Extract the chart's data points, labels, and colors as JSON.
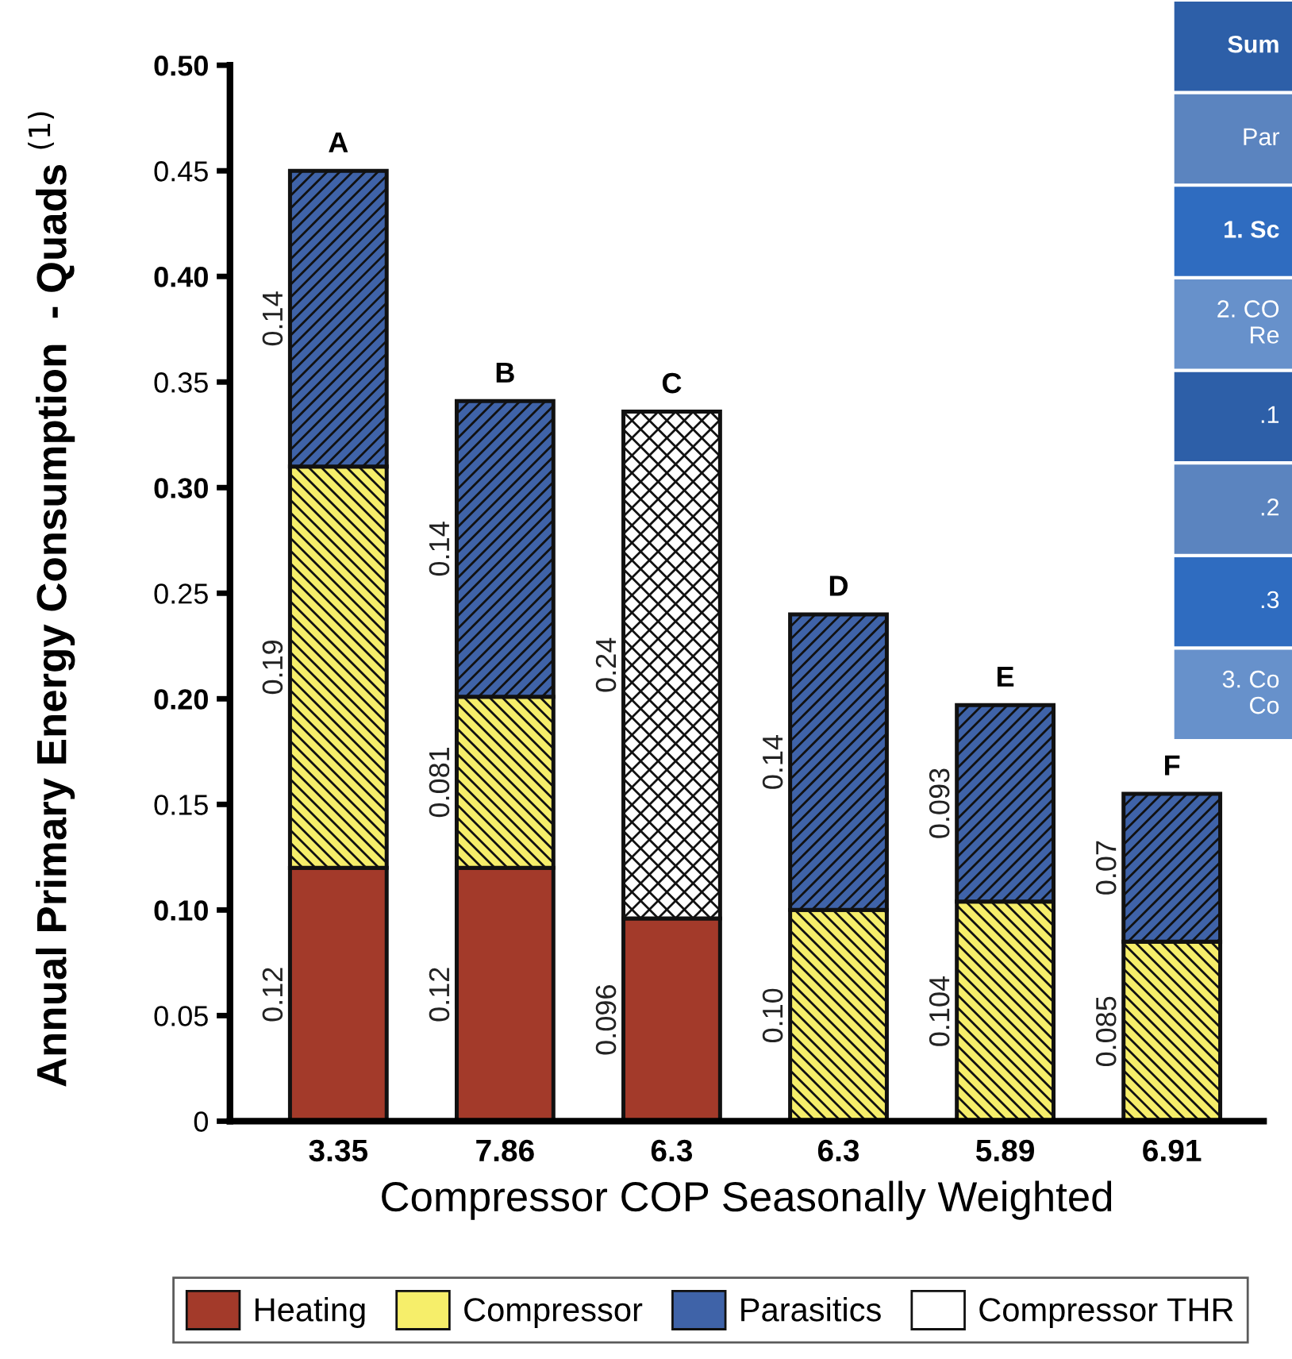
{
  "chart_data": [
    {
      "type": "bar",
      "stacked": true,
      "xlabel": "Compressor COP Seasonally Weighted",
      "ylabel": "Annual Primary Energy Consumption  - Quads $^{(1)}$",
      "categories": [
        "3.35",
        "7.86",
        "6.3",
        "6.3",
        "5.89",
        "6.91"
      ],
      "series": [
        {
          "name": "Heating",
          "color": "#a33a2a",
          "values": [
            0.12,
            0.12,
            0.096,
            null,
            null,
            null
          ],
          "value_labels": [
            "0.12",
            "0.12",
            "0.096",
            null,
            null,
            null
          ]
        },
        {
          "name": "Compressor",
          "color": "#f6ee6a",
          "values": [
            0.19,
            0.081,
            null,
            0.1,
            0.104,
            0.085
          ],
          "value_labels": [
            "0.19",
            "0.081",
            null,
            "0.10",
            "0.104",
            "0.085"
          ]
        },
        {
          "name": "Parasitics",
          "color": "#3f63a8",
          "values": [
            0.14,
            0.14,
            null,
            0.14,
            0.093,
            0.07
          ],
          "value_labels": [
            "0.14",
            "0.14",
            null,
            "0.14",
            "0.093",
            "0.07"
          ]
        },
        {
          "name": "Compressor THR",
          "color": "#ffffff",
          "values": [
            null,
            null,
            0.24,
            null,
            null,
            null
          ],
          "value_labels": [
            null,
            null,
            "0.24",
            null,
            null,
            null
          ]
        }
      ],
      "annotations": [
        {
          "text": "A",
          "x": "3.35",
          "y": 0.45
        },
        {
          "text": "B",
          "x": "7.86",
          "y": 0.341
        },
        {
          "text": "C",
          "y": 0.336
        },
        {
          "text": "D",
          "y": 0.24
        },
        {
          "text": "E",
          "x": "5.89",
          "y": 0.197
        },
        {
          "text": "F",
          "x": "6.91",
          "y": 0.155
        }
      ],
      "ylim": [
        0,
        0.5
      ],
      "yticks": [
        0,
        {
          "value": 0.05,
          "label": "0.05"
        },
        {
          "value": 0.1,
          "label": "0.10"
        },
        {
          "value": 0.15,
          "label": "0.15"
        },
        {
          "value": 0.2,
          "label": "0.20"
        },
        {
          "value": 0.25,
          "label": "0.25"
        },
        {
          "value": 0.3,
          "label": "0.30"
        },
        {
          "value": 0.35,
          "label": "0.35"
        },
        {
          "value": 0.4,
          "label": "0.40"
        },
        {
          "value": 0.45,
          "label": "0.45"
        },
        {
          "value": 0.5,
          "label": "0.50"
        }
      ],
      "grid": false,
      "legend": "bottom"
    },
    {
      "type": "other",
      "annotations": [
        "Sum",
        "Par",
        "1. Sc",
        "2. CO\nRe",
        ".1",
        ".2",
        ".3",
        "3. Co\nCo"
      ]
    }
  ]
}
